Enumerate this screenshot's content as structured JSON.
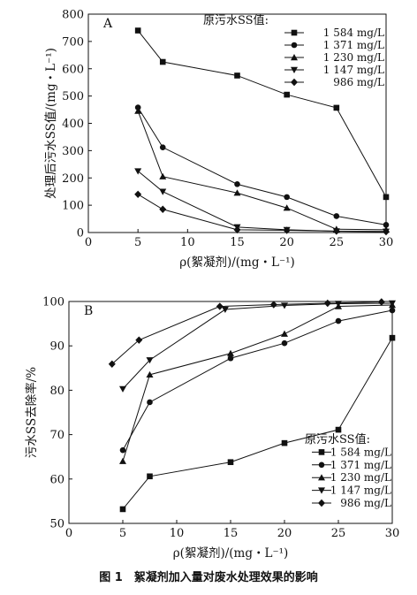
{
  "caption": "图 1　絮凝剂加入量对废水处理效果的影响",
  "chart_data": [
    {
      "type": "line",
      "panel_label": "A",
      "xlabel": "ρ(絮凝剂)/(mg・L⁻¹)",
      "ylabel": "处理后污水SS值/(mg・L⁻¹)",
      "xlim": [
        0,
        30
      ],
      "ylim": [
        0,
        800
      ],
      "xticks": [
        0,
        5,
        10,
        15,
        20,
        25,
        30
      ],
      "yticks": [
        0,
        100,
        200,
        300,
        400,
        500,
        600,
        700,
        800
      ],
      "grid": false,
      "legend_title": "原污水SS值:",
      "legend_position": "top-right",
      "series": [
        {
          "name": "1 584 mg/L",
          "marker": "square",
          "x": [
            5,
            7.5,
            15,
            20,
            25,
            30
          ],
          "y": [
            740,
            625,
            575,
            505,
            457,
            130
          ]
        },
        {
          "name": "1 371 mg/L",
          "marker": "circle",
          "x": [
            5,
            7.5,
            15,
            20,
            25,
            30
          ],
          "y": [
            458,
            312,
            177,
            130,
            60,
            28
          ]
        },
        {
          "name": "1 230 mg/L",
          "marker": "triangle-up",
          "x": [
            5,
            7.5,
            15,
            20,
            25,
            30
          ],
          "y": [
            445,
            205,
            145,
            90,
            12,
            10
          ]
        },
        {
          "name": "1 147 mg/L",
          "marker": "triangle-down",
          "x": [
            5,
            7.5,
            15,
            20,
            25,
            30
          ],
          "y": [
            225,
            150,
            20,
            10,
            5,
            4
          ]
        },
        {
          "name": "986 mg/L",
          "marker": "diamond",
          "x": [
            5,
            7.5,
            15,
            20,
            25,
            30
          ],
          "y": [
            140,
            85,
            10,
            8,
            5,
            3
          ]
        }
      ]
    },
    {
      "type": "line",
      "panel_label": "B",
      "xlabel": "ρ(絮凝剂)/(mg・L⁻¹)",
      "ylabel": "污水SS去除率/%",
      "xlim": [
        0,
        30
      ],
      "ylim": [
        50,
        100
      ],
      "xticks": [
        0,
        5,
        10,
        15,
        20,
        25,
        30
      ],
      "yticks": [
        50,
        60,
        70,
        80,
        90,
        100
      ],
      "grid": false,
      "legend_title": "原污水SS值:",
      "legend_position": "bottom-right",
      "series": [
        {
          "name": "1 584 mg/L",
          "marker": "square",
          "x": [
            5,
            7.5,
            15,
            20,
            25,
            30
          ],
          "y": [
            53.2,
            60.6,
            63.8,
            68.1,
            71.1,
            91.8
          ]
        },
        {
          "name": "1 371 mg/L",
          "marker": "circle",
          "x": [
            5,
            7.5,
            15,
            20,
            25,
            30
          ],
          "y": [
            66.5,
            77.3,
            87.2,
            90.6,
            95.6,
            98
          ]
        },
        {
          "name": "1 230 mg/L",
          "marker": "triangle-up",
          "x": [
            5,
            7.5,
            15,
            20,
            25,
            30
          ],
          "y": [
            64,
            83.5,
            88.3,
            92.7,
            98.9,
            99.2
          ]
        },
        {
          "name": "1 147 mg/L",
          "marker": "triangle-down",
          "x": [
            5,
            7.5,
            14.5,
            20,
            25,
            30
          ],
          "y": [
            80.3,
            86.8,
            98.2,
            99.1,
            99.5,
            99.6
          ]
        },
        {
          "name": "986 mg/L",
          "marker": "diamond",
          "x": [
            4,
            6.5,
            14,
            19,
            24,
            29
          ],
          "y": [
            85.9,
            91.3,
            98.9,
            99.3,
            99.6,
            99.9
          ]
        }
      ]
    }
  ]
}
